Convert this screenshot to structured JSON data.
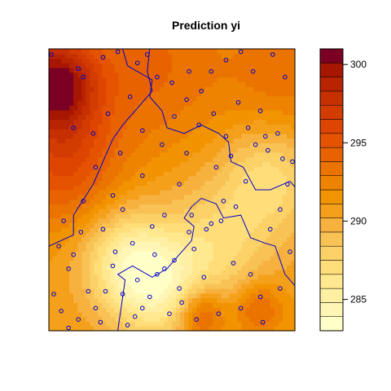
{
  "chart_data": {
    "type": "heatmap",
    "title": "Prediction yi",
    "xlabel": "",
    "ylabel": "",
    "colorbar": {
      "ticks": [
        285,
        290,
        295,
        300
      ],
      "tick_labels": [
        "285",
        "290",
        "295",
        "300"
      ],
      "range": [
        283,
        301
      ],
      "colors": [
        "#FFFFC8",
        "#FFF6B5",
        "#FFEFA2",
        "#FFE88E",
        "#FFDE7A",
        "#FBD168",
        "#F8C254",
        "#F7B13F",
        "#F5A01A",
        "#F29300",
        "#EE8300",
        "#EB7300",
        "#E86300",
        "#E55300",
        "#DE4500",
        "#D33C00",
        "#C63000",
        "#B82400",
        "#A71600",
        "#7A0024"
      ]
    },
    "surface": {
      "base_value": 291,
      "components": [
        {
          "x": 0.02,
          "y": 0.88,
          "amplitude": 9.0,
          "spread": 0.12
        },
        {
          "x": 0.06,
          "y": 0.6,
          "amplitude": 4.5,
          "spread": 0.16
        },
        {
          "x": 0.4,
          "y": 0.95,
          "amplitude": 3.0,
          "spread": 0.22
        },
        {
          "x": 0.32,
          "y": 0.25,
          "amplitude": -5.5,
          "spread": 0.13
        },
        {
          "x": 0.46,
          "y": 0.14,
          "amplitude": -4.5,
          "spread": 0.13
        },
        {
          "x": 0.68,
          "y": 0.3,
          "amplitude": -3.5,
          "spread": 0.16
        },
        {
          "x": 0.9,
          "y": 0.55,
          "amplitude": -4.0,
          "spread": 0.14
        },
        {
          "x": 0.62,
          "y": 0.06,
          "amplitude": 5.0,
          "spread": 0.07
        },
        {
          "x": 0.85,
          "y": 0.08,
          "amplitude": 3.5,
          "spread": 0.07
        },
        {
          "x": 0.97,
          "y": 0.9,
          "amplitude": 2.5,
          "spread": 0.18
        }
      ]
    },
    "line_color": "#0000CC",
    "point_color": "#0000CC",
    "points": [
      [
        0.01,
        0.98
      ],
      [
        0.12,
        0.93
      ],
      [
        0.14,
        0.9
      ],
      [
        0.22,
        0.97
      ],
      [
        0.28,
        0.99
      ],
      [
        0.36,
        0.95
      ],
      [
        0.4,
        0.98
      ],
      [
        0.44,
        0.9
      ],
      [
        0.5,
        0.88
      ],
      [
        0.57,
        0.92
      ],
      [
        0.62,
        0.85
      ],
      [
        0.66,
        0.92
      ],
      [
        0.72,
        0.96
      ],
      [
        0.78,
        0.99
      ],
      [
        0.83,
        0.92
      ],
      [
        0.91,
        0.98
      ],
      [
        0.96,
        0.9
      ],
      [
        0.1,
        0.72
      ],
      [
        0.18,
        0.7
      ],
      [
        0.24,
        0.77
      ],
      [
        0.29,
        0.63
      ],
      [
        0.33,
        0.83
      ],
      [
        0.38,
        0.71
      ],
      [
        0.46,
        0.66
      ],
      [
        0.51,
        0.76
      ],
      [
        0.56,
        0.82
      ],
      [
        0.61,
        0.73
      ],
      [
        0.67,
        0.77
      ],
      [
        0.72,
        0.69
      ],
      [
        0.77,
        0.81
      ],
      [
        0.81,
        0.72
      ],
      [
        0.86,
        0.78
      ],
      [
        0.88,
        0.69
      ],
      [
        0.89,
        0.64
      ],
      [
        0.93,
        0.7
      ],
      [
        0.95,
        0.61
      ],
      [
        0.99,
        0.6
      ],
      [
        0.97,
        0.52
      ],
      [
        0.8,
        0.53
      ],
      [
        0.76,
        0.44
      ],
      [
        0.7,
        0.39
      ],
      [
        0.64,
        0.36
      ],
      [
        0.58,
        0.41
      ],
      [
        0.47,
        0.41
      ],
      [
        0.06,
        0.39
      ],
      [
        0.1,
        0.27
      ],
      [
        0.13,
        0.35
      ],
      [
        0.22,
        0.36
      ],
      [
        0.27,
        0.28
      ],
      [
        0.34,
        0.31
      ],
      [
        0.43,
        0.27
      ],
      [
        0.51,
        0.25
      ],
      [
        0.57,
        0.35
      ],
      [
        0.66,
        0.38
      ],
      [
        0.71,
        0.46
      ],
      [
        0.63,
        0.19
      ],
      [
        0.54,
        0.1
      ],
      [
        0.41,
        0.12
      ],
      [
        0.36,
        0.18
      ],
      [
        0.3,
        0.13
      ],
      [
        0.23,
        0.14
      ],
      [
        0.44,
        0.2
      ],
      [
        0.47,
        0.22
      ],
      [
        0.35,
        0.05
      ],
      [
        0.38,
        0.08
      ],
      [
        0.32,
        0.02
      ],
      [
        0.21,
        0.03
      ],
      [
        0.12,
        0.04
      ],
      [
        0.05,
        0.07
      ],
      [
        0.02,
        0.13
      ],
      [
        0.08,
        0.22
      ],
      [
        0.19,
        0.08
      ],
      [
        0.26,
        0.23
      ],
      [
        0.53,
        0.15
      ],
      [
        0.59,
        0.29
      ],
      [
        0.75,
        0.24
      ],
      [
        0.82,
        0.2
      ],
      [
        0.9,
        0.36
      ],
      [
        0.94,
        0.43
      ],
      [
        0.98,
        0.28
      ],
      [
        0.86,
        0.12
      ],
      [
        0.78,
        0.08
      ],
      [
        0.69,
        0.06
      ],
      [
        0.6,
        0.04
      ],
      [
        0.49,
        0.06
      ],
      [
        0.87,
        0.03
      ],
      [
        0.94,
        0.15
      ],
      [
        0.04,
        0.3
      ],
      [
        0.14,
        0.46
      ],
      [
        0.26,
        0.48
      ],
      [
        0.19,
        0.58
      ],
      [
        0.38,
        0.55
      ],
      [
        0.56,
        0.63
      ],
      [
        0.68,
        0.58
      ],
      [
        0.74,
        0.62
      ],
      [
        0.84,
        0.66
      ],
      [
        0.53,
        0.52
      ],
      [
        0.3,
        0.43
      ],
      [
        0.42,
        0.37
      ],
      [
        0.16,
        0.14
      ],
      [
        0.08,
        0.01
      ]
    ],
    "boundary": [
      [
        0.3,
        1.0
      ],
      [
        0.32,
        0.94
      ],
      [
        0.42,
        0.89
      ],
      [
        0.41,
        0.83
      ],
      [
        0.46,
        0.78
      ],
      [
        0.48,
        0.72
      ],
      [
        0.55,
        0.7
      ],
      [
        0.62,
        0.73
      ],
      [
        0.69,
        0.7
      ],
      [
        0.73,
        0.67
      ],
      [
        0.74,
        0.6
      ],
      [
        0.79,
        0.58
      ],
      [
        0.84,
        0.5
      ],
      [
        0.9,
        0.5
      ],
      [
        0.98,
        0.53
      ],
      [
        1.0,
        0.51
      ]
    ],
    "boundary_left": [
      [
        0.0,
        0.3
      ],
      [
        0.05,
        0.32
      ],
      [
        0.1,
        0.34
      ],
      [
        0.1,
        0.41
      ],
      [
        0.18,
        0.52
      ],
      [
        0.22,
        0.6
      ],
      [
        0.26,
        0.68
      ],
      [
        0.3,
        0.73
      ],
      [
        0.38,
        0.81
      ],
      [
        0.42,
        0.85
      ],
      [
        0.4,
        0.92
      ],
      [
        0.41,
        1.0
      ]
    ],
    "boundary_lower": [
      [
        0.28,
        0.0
      ],
      [
        0.3,
        0.12
      ],
      [
        0.31,
        0.18
      ],
      [
        0.28,
        0.2
      ],
      [
        0.34,
        0.23
      ],
      [
        0.42,
        0.19
      ],
      [
        0.48,
        0.22
      ],
      [
        0.53,
        0.27
      ],
      [
        0.58,
        0.32
      ],
      [
        0.59,
        0.37
      ],
      [
        0.55,
        0.4
      ],
      [
        0.58,
        0.44
      ],
      [
        0.62,
        0.47
      ],
      [
        0.68,
        0.45
      ],
      [
        0.71,
        0.4
      ],
      [
        0.78,
        0.41
      ],
      [
        0.82,
        0.33
      ],
      [
        0.88,
        0.31
      ],
      [
        0.92,
        0.3
      ],
      [
        0.96,
        0.2
      ],
      [
        1.0,
        0.16
      ]
    ]
  }
}
